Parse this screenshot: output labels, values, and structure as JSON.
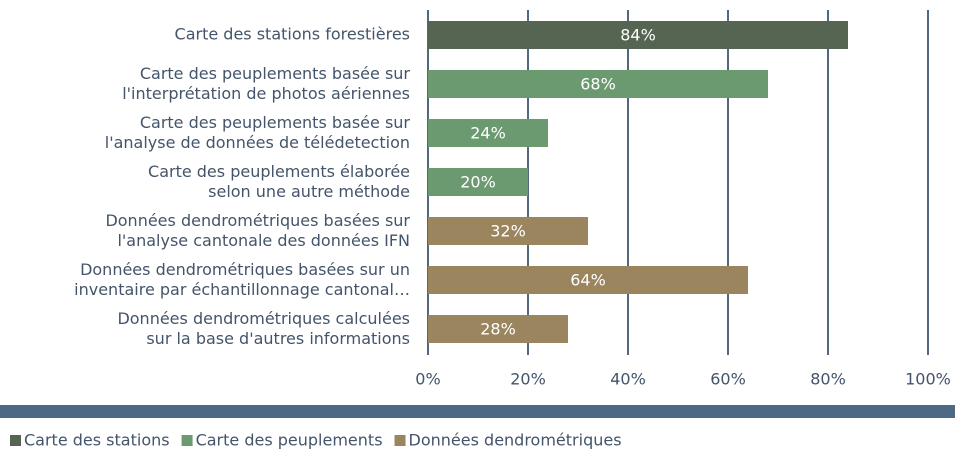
{
  "chart_data": {
    "type": "barh",
    "categories": [
      "Carte des stations forestières",
      "Carte des peuplements basée sur\nl'interprétation de photos aériennes",
      "Carte des peuplements basée sur\nl'analyse de données de télédetection",
      "Carte des peuplements élaborée\nselon une autre méthode",
      "Données dendrométriques basées sur\nl'analyse cantonale des données IFN",
      "Données dendrométriques basées sur un\ninventaire par échantillonnage cantonal…",
      "Données dendrométriques calculées\nsur la base d'autres informations"
    ],
    "series": [
      {
        "name": "Carte des stations",
        "color": "#556551",
        "values": [
          84,
          null,
          null,
          null,
          null,
          null,
          null
        ],
        "value_labels": [
          "84%",
          null,
          null,
          null,
          null,
          null,
          null
        ]
      },
      {
        "name": "Carte des peuplements",
        "color": "#6b9a70",
        "values": [
          null,
          68,
          24,
          20,
          null,
          null,
          null
        ],
        "value_labels": [
          null,
          "68%",
          "24%",
          "20%",
          null,
          null,
          null
        ]
      },
      {
        "name": "Données dendrométriques",
        "color": "#9b855f",
        "values": [
          null,
          null,
          null,
          null,
          32,
          64,
          28
        ],
        "value_labels": [
          null,
          null,
          null,
          null,
          "32%",
          "64%",
          "28%"
        ]
      }
    ],
    "xlim": [
      0,
      100
    ],
    "xticks": [
      {
        "value": 0,
        "label": "0%"
      },
      {
        "value": 20,
        "label": "20%"
      },
      {
        "value": 40,
        "label": "40%"
      },
      {
        "value": 60,
        "label": "60%"
      },
      {
        "value": 80,
        "label": "80%"
      },
      {
        "value": 100,
        "label": "100%"
      }
    ],
    "grid": true,
    "legend": "bottom-left"
  }
}
